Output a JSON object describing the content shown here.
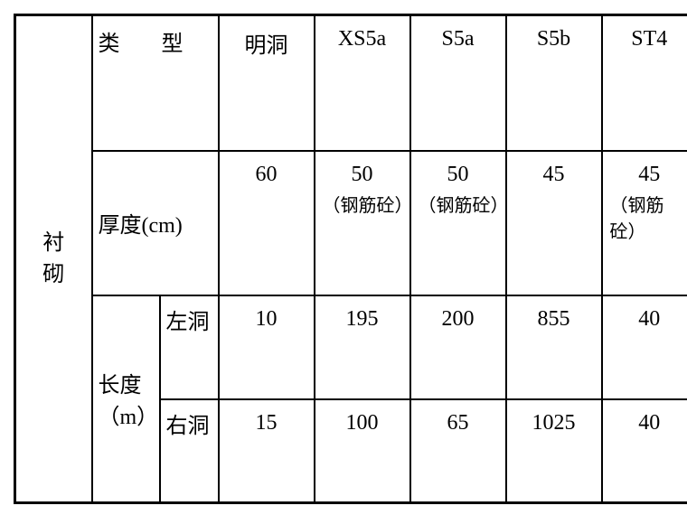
{
  "table": {
    "side_label_1": "衬",
    "side_label_2": "砌",
    "header": {
      "type": "类   型",
      "cols": [
        "明洞",
        "XS5a",
        "S5a",
        "S5b",
        "ST4"
      ]
    },
    "thickness": {
      "label": "厚度(cm)",
      "values": [
        "60",
        "50",
        "50",
        "45",
        "45"
      ],
      "subtexts": [
        "",
        "（钢筋砼）",
        "（钢筋砼）",
        "",
        "（钢筋砼）"
      ]
    },
    "length": {
      "label": "长度（m）",
      "rows": [
        {
          "label": "左洞",
          "values": [
            "10",
            "195",
            "200",
            "855",
            "40"
          ]
        },
        {
          "label": "右洞",
          "values": [
            "15",
            "100",
            "65",
            "1025",
            "40"
          ]
        }
      ]
    }
  },
  "style": {
    "font_family": "SimSun",
    "font_size": 24,
    "border_color": "#000000",
    "background_color": "#ffffff",
    "text_color": "#000000",
    "outer_border_width": 3,
    "inner_border_width": 2,
    "columns": {
      "side_label_width": 85,
      "sub1_width": 75,
      "sub2_width": 65,
      "data_width": 106
    },
    "row_heights": {
      "header": 150,
      "thickness": 160,
      "length": 115
    }
  }
}
